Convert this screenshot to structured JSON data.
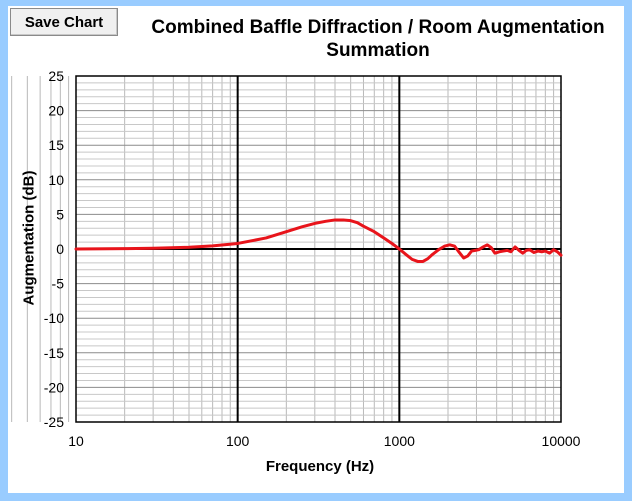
{
  "toolbar": {
    "save_label": "Save Chart"
  },
  "chart_data": {
    "type": "line",
    "title": "Combined Baffle Diffraction / Room Augmentation Summation",
    "xlabel": "Frequency (Hz)",
    "ylabel": "Augmentation (dB)",
    "x_scale": "log",
    "xlim": [
      10,
      10000
    ],
    "ylim": [
      -25,
      25
    ],
    "x_ticks": [
      "10",
      "100",
      "1000",
      "10000"
    ],
    "y_ticks": [
      "25",
      "20",
      "15",
      "10",
      "5",
      "0",
      "-5",
      "-10",
      "-15",
      "-20",
      "-25"
    ],
    "grid": true,
    "line_color": "#e8141b",
    "series": [
      {
        "x": [
          10,
          20,
          30,
          50,
          70,
          100,
          150,
          200,
          250,
          300,
          350,
          400,
          450,
          500,
          550,
          600,
          700,
          800,
          900,
          1000,
          1100,
          1200,
          1300,
          1400,
          1500,
          1600,
          1750,
          1900,
          2050,
          2200,
          2350,
          2500,
          2650,
          2800,
          2950,
          3100,
          3300,
          3500,
          3700,
          3900,
          4150,
          4400,
          4650,
          4900,
          5200,
          5500,
          5800,
          6100,
          6400,
          6800,
          7200,
          7600,
          8000,
          8500,
          9000,
          9500,
          10000
        ],
        "values": [
          0.0,
          0.05,
          0.1,
          0.25,
          0.45,
          0.8,
          1.6,
          2.5,
          3.2,
          3.7,
          4.0,
          4.2,
          4.2,
          4.1,
          3.8,
          3.3,
          2.5,
          1.6,
          0.8,
          0.0,
          -0.8,
          -1.5,
          -1.8,
          -1.8,
          -1.4,
          -0.8,
          -0.1,
          0.4,
          0.6,
          0.4,
          -0.5,
          -1.3,
          -1.0,
          -0.3,
          -0.2,
          -0.1,
          0.3,
          0.6,
          0.2,
          -0.6,
          -0.4,
          -0.3,
          -0.2,
          -0.4,
          0.3,
          -0.2,
          -0.6,
          -0.2,
          -0.1,
          -0.5,
          -0.3,
          -0.4,
          -0.3,
          -0.6,
          -0.1,
          -0.4,
          -0.9
        ]
      }
    ]
  }
}
